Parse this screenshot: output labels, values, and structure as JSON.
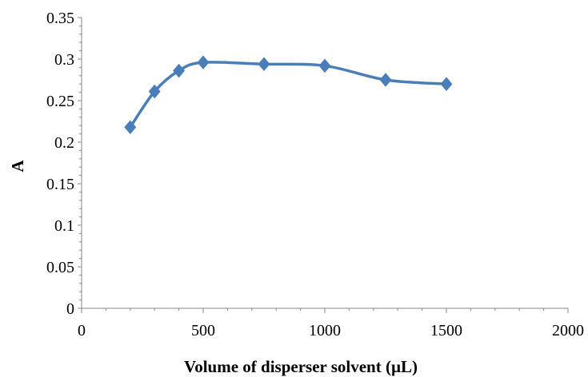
{
  "chart_data": {
    "type": "line",
    "title": "",
    "xlabel": "Volume of disperser solvent (µL)",
    "ylabel": "A",
    "xlim": [
      0,
      2000
    ],
    "ylim": [
      0,
      0.35
    ],
    "x_ticks": [
      0,
      500,
      1000,
      1500,
      2000
    ],
    "x_tick_labels": [
      "0",
      "500",
      "1000",
      "1500",
      "2000"
    ],
    "y_ticks": [
      0,
      0.05,
      0.1,
      0.15,
      0.2,
      0.25,
      0.3,
      0.35
    ],
    "y_tick_labels": [
      "0",
      "0.05",
      "0.1",
      "0.15",
      "0.2",
      "0.25",
      "0.3",
      "0.35"
    ],
    "grid": false,
    "smooth": true,
    "marker": "diamond",
    "colors": {
      "line": "#4a7ebb",
      "marker": "#4a7ebb",
      "axis": "#888888"
    },
    "series": [
      {
        "x": [
          200,
          300,
          400,
          500,
          750,
          1000,
          1250,
          1500
        ],
        "y": [
          0.218,
          0.261,
          0.286,
          0.296,
          0.294,
          0.292,
          0.275,
          0.27
        ]
      }
    ]
  }
}
